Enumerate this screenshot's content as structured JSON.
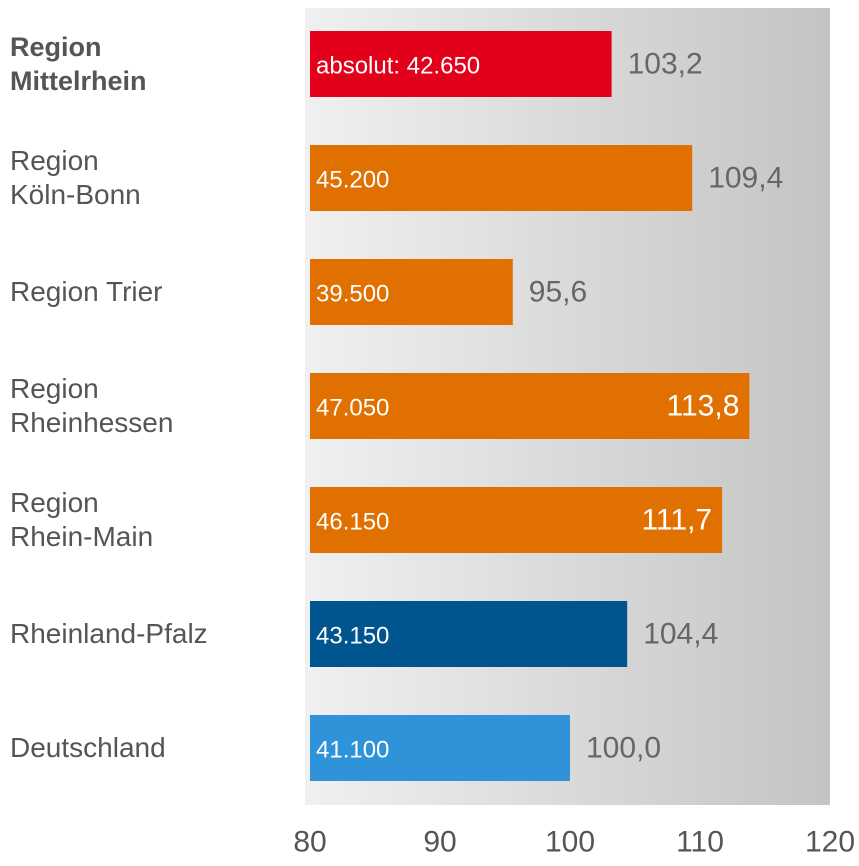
{
  "chart_data": {
    "type": "barh",
    "categories": [
      "Region\nMittelrhein",
      "Region\nKöln-Bonn",
      "Region Trier",
      "Region\nRheinhessen",
      "Region\nRhein-Main",
      "Rheinland-Pfalz",
      "Deutschland"
    ],
    "values": [
      103.2,
      109.4,
      95.6,
      113.8,
      111.7,
      104.4,
      100.0
    ],
    "value_labels": [
      "103,2",
      "109,4",
      "95,6",
      "113,8",
      "111,7",
      "104,4",
      "100,0"
    ],
    "bar_labels": [
      "absolut: 42.650",
      "45.200",
      "39.500",
      "47.050",
      "46.150",
      "43.150",
      "41.100"
    ],
    "colors": [
      "#e2001a",
      "#e07000",
      "#e07000",
      "#e07000",
      "#e07000",
      "#00558f",
      "#2e93d8"
    ],
    "xlim": [
      80,
      120
    ],
    "xticks": [
      80,
      90,
      100,
      110,
      120
    ]
  }
}
